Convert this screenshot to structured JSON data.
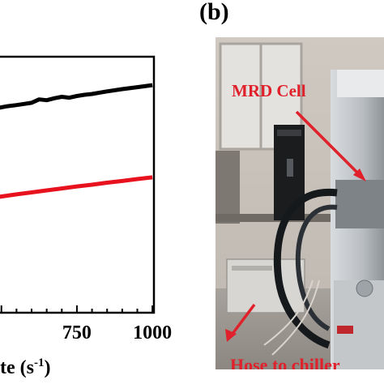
{
  "panel_label": "(b)",
  "chart_data": {
    "type": "line",
    "xlabel_visible": "te (s",
    "xlabel_exp": "-1",
    "xlabel_close": ")",
    "x_ticks": [
      {
        "value": 750,
        "label": "750"
      },
      {
        "value": 1000,
        "label": "1000"
      }
    ],
    "xlim": [
      490,
      1005
    ],
    "series": [
      {
        "color": "#000000",
        "x": [
          490,
          520,
          550,
          575,
          600,
          625,
          650,
          675,
          700,
          725,
          750,
          775,
          800,
          850,
          900,
          950,
          1000
        ],
        "y": [
          131,
          131.6,
          132,
          132.4,
          132.8,
          134,
          133.7,
          134.4,
          134.9,
          134.6,
          135.2,
          135.6,
          135.9,
          136.8,
          137.6,
          138.3,
          139
        ]
      },
      {
        "color": "#e8121f",
        "x": [
          490,
          550,
          600,
          650,
          700,
          750,
          800,
          850,
          900,
          950,
          1000
        ],
        "y": [
          99.7,
          100.6,
          101.3,
          102,
          102.7,
          103.4,
          104,
          104.7,
          105.3,
          106,
          106.6
        ]
      }
    ],
    "ylim": [
      59,
      149
    ]
  },
  "photo": {
    "annotations": {
      "mrd_cell": "MRD Cell",
      "hose": "Hose to chiller"
    },
    "arrow_color": "#e0202a"
  }
}
